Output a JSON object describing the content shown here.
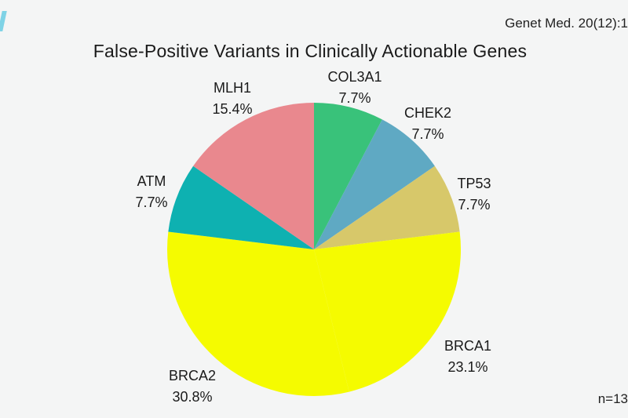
{
  "citation": "Genet Med. 20(12):1",
  "sample_size": "n=13",
  "chart_data": {
    "type": "pie",
    "title": "False-Positive Variants in Clinically Actionable Genes",
    "slices": [
      {
        "label": "COL3A1",
        "percent_label": "7.7%",
        "value": 7.7,
        "color": "#39c27a"
      },
      {
        "label": "CHEK2",
        "percent_label": "7.7%",
        "value": 7.7,
        "color": "#5fa9c3"
      },
      {
        "label": "TP53",
        "percent_label": "7.7%",
        "value": 7.7,
        "color": "#d7c86a"
      },
      {
        "label": "BRCA1",
        "percent_label": "23.1%",
        "value": 23.1,
        "color": "#f5fb00"
      },
      {
        "label": "BRCA2",
        "percent_label": "30.8%",
        "value": 30.8,
        "color": "#f5fb00"
      },
      {
        "label": "ATM",
        "percent_label": "7.7%",
        "value": 7.7,
        "color": "#0eb1b1"
      },
      {
        "label": "MLH1",
        "percent_label": "15.4%",
        "value": 15.4,
        "color": "#e9888e"
      }
    ]
  }
}
